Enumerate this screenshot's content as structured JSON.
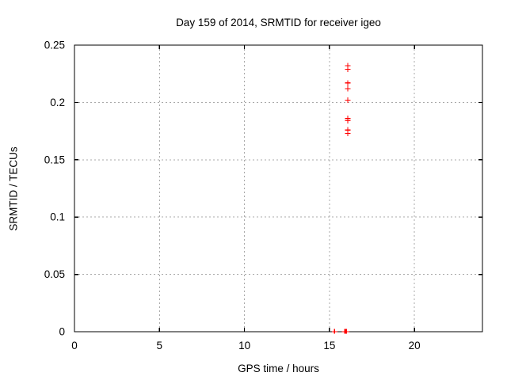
{
  "title": "Day 159 of 2014, SRMTID for receiver igeo",
  "xlabel": "GPS time / hours",
  "ylabel": "SRMTID / TECUs",
  "colors": {
    "background": "#ffffff",
    "text": "#000000",
    "axis": "#000000",
    "grid": "#a9a9a9",
    "marker": "#ff0000"
  },
  "chart_data": {
    "type": "scatter",
    "title": "Day 159 of 2014, SRMTID for receiver igeo",
    "xlabel": "GPS time / hours",
    "ylabel": "SRMTID / TECUs",
    "xlim": [
      0,
      24
    ],
    "ylim": [
      0,
      0.25
    ],
    "xticks": [
      0,
      5,
      10,
      15,
      20
    ],
    "xtick_labels": [
      "0",
      "5",
      "10",
      "15",
      "20"
    ],
    "yticks": [
      0,
      0.05,
      0.1,
      0.15,
      0.2,
      0.25
    ],
    "ytick_labels": [
      "0",
      "0.05",
      "0.1",
      "0.15",
      "0.2",
      "0.25"
    ],
    "grid": true,
    "legend": "none",
    "marker": "plus",
    "marker_color": "#ff0000",
    "series": [
      {
        "name": "SRMTID",
        "points": [
          [
            16.08,
            0.232
          ],
          [
            16.08,
            0.229
          ],
          [
            16.08,
            0.217
          ],
          [
            16.08,
            0.212
          ],
          [
            16.08,
            0.202
          ],
          [
            16.08,
            0.186
          ],
          [
            16.08,
            0.184
          ],
          [
            16.08,
            0.176
          ],
          [
            16.08,
            0.173
          ],
          [
            15.3,
            0.0
          ],
          [
            15.9,
            0.0
          ],
          [
            15.95,
            0.0
          ],
          [
            16.0,
            0.0
          ]
        ]
      }
    ]
  }
}
